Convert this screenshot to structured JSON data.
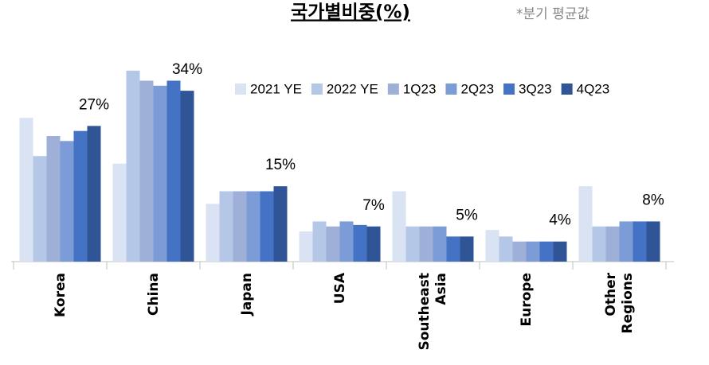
{
  "chart_data": {
    "type": "bar",
    "title": "국가별비중(%)",
    "subtitle": "*분기 평균값",
    "categories": [
      "Korea",
      "China",
      "Japan",
      "USA",
      "Southeast Asia",
      "Europe",
      "Other Regions"
    ],
    "ylim": [
      0,
      40
    ],
    "series": [
      {
        "name": "2021 YE",
        "color": "#dae3f3",
        "values": [
          28.6,
          19.5,
          11.5,
          6,
          14,
          6.3,
          15
        ]
      },
      {
        "name": "2022 YE",
        "color": "#b4c7e7",
        "values": [
          21,
          38,
          14,
          8,
          7,
          5,
          7
        ]
      },
      {
        "name": "1Q23",
        "color": "#9eb0d8",
        "values": [
          25,
          36,
          14,
          7,
          7,
          4,
          7
        ]
      },
      {
        "name": "2Q23",
        "color": "#7b9cd6",
        "values": [
          24,
          35,
          14,
          8,
          7,
          4,
          8
        ]
      },
      {
        "name": "3Q23",
        "color": "#4472c4",
        "values": [
          26,
          36,
          14,
          7.3,
          5,
          4,
          8
        ]
      },
      {
        "name": "4Q23",
        "color": "#2f5597",
        "values": [
          27,
          34,
          15,
          7,
          5,
          4,
          8
        ],
        "value_labels": [
          "27%",
          "34%",
          "15%",
          "7%",
          "5%",
          "4%",
          "8%"
        ]
      }
    ]
  }
}
